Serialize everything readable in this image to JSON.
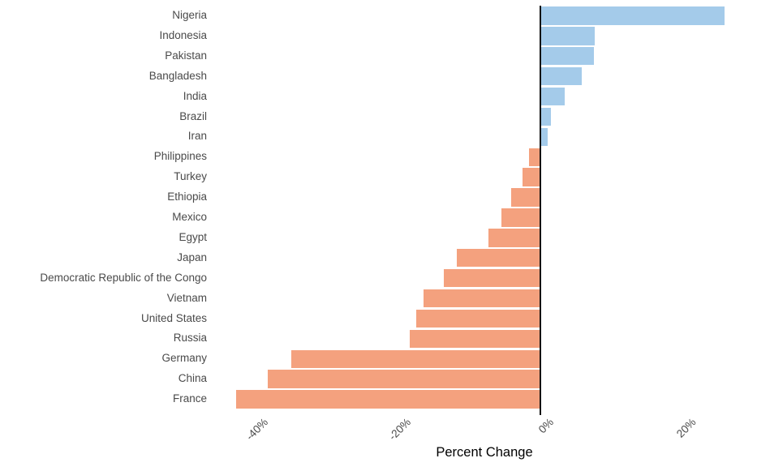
{
  "chart_data": {
    "type": "bar",
    "orientation": "horizontal",
    "title": "",
    "xlabel": "Percent Change",
    "ylabel": "",
    "xlim": [
      -46.1,
      30.3
    ],
    "grid": false,
    "legend": "none",
    "colors": {
      "positive_bar": "#a4cbea",
      "negative_bar": "#f4a17e",
      "zero_axis_line": "#111111",
      "axis_text": "#4a4a4a",
      "axis_title": "#000000"
    },
    "categories": [
      "Nigeria",
      "Indonesia",
      "Pakistan",
      "Bangladesh",
      "India",
      "Brazil",
      "Iran",
      "Philippines",
      "Turkey",
      "Ethiopia",
      "Mexico",
      "Egypt",
      "Japan",
      "Democratic Republic of the Congo",
      "Vietnam",
      "United States",
      "Russia",
      "Germany",
      "China",
      "France"
    ],
    "values": [
      25.7,
      7.6,
      7.5,
      5.7,
      3.3,
      1.4,
      1.0,
      -1.7,
      -2.5,
      -4.2,
      -5.5,
      -7.3,
      -11.8,
      -13.6,
      -16.4,
      -17.4,
      -18.4,
      -35.0,
      -38.2,
      -42.7
    ],
    "x_ticks": [
      {
        "value": -40,
        "label": "-40%"
      },
      {
        "value": -20,
        "label": "-20%"
      },
      {
        "value": 0,
        "label": "0%"
      },
      {
        "value": 20,
        "label": "20%"
      }
    ]
  }
}
